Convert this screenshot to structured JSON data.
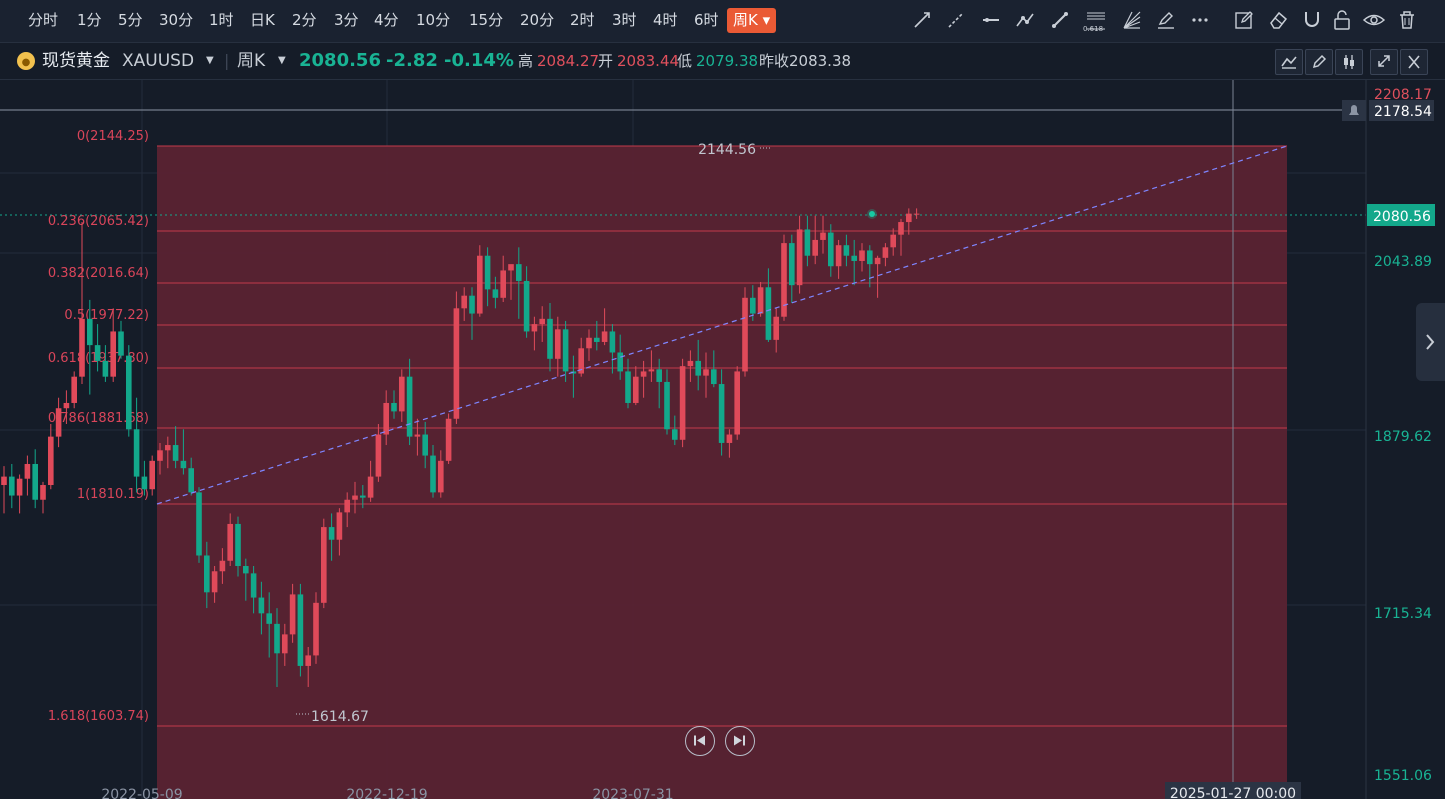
{
  "timeframes": [
    "分时",
    "1分",
    "5分",
    "30分",
    "1时",
    "日K",
    "2分",
    "3分",
    "4分",
    "10分",
    "15分",
    "20分",
    "2时",
    "3时",
    "4时",
    "6时",
    "周K"
  ],
  "active_timeframe": "周K",
  "drawing_tools": [
    "trend-line-icon",
    "ray-line-icon",
    "horizontal-line-icon",
    "polyline-icon",
    "segment-icon",
    "fibonacci-icon",
    "fib-fan-icon",
    "pen-icon",
    "more-icon",
    "edit-note-icon",
    "eraser-icon",
    "magnet-icon",
    "unlock-icon",
    "eye-icon",
    "trash-icon"
  ],
  "fib_tool_label": "0.618",
  "symbol": {
    "name": "现货黄金",
    "code": "XAUUSD",
    "period": "周K",
    "price": "2080.56",
    "change": "-2.82",
    "change_pct": "-0.14%",
    "high_label": "高",
    "high": "2084.27",
    "open_label": "开",
    "open": "2083.44",
    "low_label": "低",
    "low": "2079.38",
    "prev_close_label": "昨收",
    "prev_close": "2083.38"
  },
  "colors": {
    "up": "#e04a5a",
    "down": "#13a88b",
    "background": "#151c28",
    "fib_fill": "#5a2332",
    "fib_line": "#c23a4a",
    "trend_line": "#7f86ff",
    "active_tab": "#ea5a35"
  },
  "chart_data": {
    "type": "candlestick",
    "price_axis_labels": [
      "2208.17",
      "2178.54",
      "2043.89",
      "1879.62",
      "1715.34",
      "1551.06"
    ],
    "last_price_tag": "2080.56",
    "alert_price_tag": "2178.54",
    "date_labels": [
      "2022-05-09",
      "2022-12-19",
      "2023-07-31"
    ],
    "crosshair_date": "2025-01-27 00:00",
    "max_label": "2144.56",
    "min_label": "1614.67",
    "fib_levels": [
      {
        "ratio": "0",
        "price": 2144.25,
        "label": "0(2144.25)"
      },
      {
        "ratio": "0.236",
        "price": 2065.42,
        "label": "0.236(2065.42)"
      },
      {
        "ratio": "0.382",
        "price": 2016.64,
        "label": "0.382(2016.64)"
      },
      {
        "ratio": "0.5",
        "price": 1977.22,
        "label": "0.5(1977.22)"
      },
      {
        "ratio": "0.618",
        "price": 1937.8,
        "label": "0.618(1937.80)"
      },
      {
        "ratio": "0.786",
        "price": 1881.68,
        "label": "0.786(1881.68)"
      },
      {
        "ratio": "1",
        "price": 1810.19,
        "label": "1(1810.19)"
      },
      {
        "ratio": "1.618",
        "price": 1603.74,
        "label": "1.618(1603.74)"
      }
    ],
    "trend_line": {
      "from": {
        "date_index": 19,
        "price": 1810.19
      },
      "to": {
        "date_index": 157,
        "price": 2144.25
      }
    },
    "candles": [
      [
        1822,
        1840,
        1795,
        1830
      ],
      [
        1830,
        1842,
        1800,
        1812
      ],
      [
        1812,
        1832,
        1795,
        1828
      ],
      [
        1828,
        1850,
        1812,
        1842
      ],
      [
        1842,
        1856,
        1800,
        1808
      ],
      [
        1808,
        1825,
        1795,
        1822
      ],
      [
        1822,
        1880,
        1818,
        1868
      ],
      [
        1868,
        1905,
        1858,
        1895
      ],
      [
        1895,
        1912,
        1880,
        1900
      ],
      [
        1900,
        1930,
        1895,
        1925
      ],
      [
        1925,
        2072,
        1918,
        1980
      ],
      [
        1980,
        1998,
        1908,
        1955
      ],
      [
        1955,
        1975,
        1930,
        1940
      ],
      [
        1940,
        1955,
        1920,
        1925
      ],
      [
        1925,
        1990,
        1920,
        1968
      ],
      [
        1968,
        1978,
        1942,
        1945
      ],
      [
        1945,
        1955,
        1868,
        1875
      ],
      [
        1875,
        1905,
        1815,
        1830
      ],
      [
        1830,
        1845,
        1812,
        1818
      ],
      [
        1818,
        1850,
        1812,
        1845
      ],
      [
        1845,
        1862,
        1832,
        1855
      ],
      [
        1855,
        1868,
        1838,
        1860
      ],
      [
        1860,
        1878,
        1838,
        1845
      ],
      [
        1845,
        1875,
        1832,
        1838
      ],
      [
        1838,
        1848,
        1812,
        1815
      ],
      [
        1815,
        1820,
        1748,
        1755
      ],
      [
        1755,
        1768,
        1705,
        1720
      ],
      [
        1720,
        1745,
        1710,
        1740
      ],
      [
        1740,
        1762,
        1728,
        1750
      ],
      [
        1750,
        1795,
        1745,
        1785
      ],
      [
        1785,
        1792,
        1735,
        1745
      ],
      [
        1745,
        1752,
        1712,
        1738
      ],
      [
        1738,
        1745,
        1700,
        1715
      ],
      [
        1715,
        1730,
        1680,
        1700
      ],
      [
        1700,
        1720,
        1658,
        1690
      ],
      [
        1690,
        1705,
        1630,
        1662
      ],
      [
        1662,
        1690,
        1650,
        1680
      ],
      [
        1680,
        1728,
        1672,
        1718
      ],
      [
        1718,
        1728,
        1640,
        1650
      ],
      [
        1650,
        1668,
        1630,
        1660
      ],
      [
        1660,
        1720,
        1652,
        1710
      ],
      [
        1710,
        1790,
        1705,
        1782
      ],
      [
        1782,
        1795,
        1750,
        1770
      ],
      [
        1770,
        1800,
        1755,
        1796
      ],
      [
        1796,
        1815,
        1782,
        1808
      ],
      [
        1808,
        1825,
        1795,
        1812
      ],
      [
        1812,
        1822,
        1800,
        1810
      ],
      [
        1810,
        1845,
        1806,
        1830
      ],
      [
        1830,
        1880,
        1825,
        1870
      ],
      [
        1870,
        1912,
        1860,
        1900
      ],
      [
        1900,
        1912,
        1885,
        1892
      ],
      [
        1892,
        1932,
        1882,
        1925
      ],
      [
        1925,
        1942,
        1860,
        1868
      ],
      [
        1868,
        1885,
        1850,
        1870
      ],
      [
        1870,
        1882,
        1838,
        1850
      ],
      [
        1850,
        1860,
        1810,
        1815
      ],
      [
        1815,
        1855,
        1810,
        1845
      ],
      [
        1845,
        1890,
        1842,
        1885
      ],
      [
        1885,
        2006,
        1880,
        1990
      ],
      [
        1990,
        2010,
        1978,
        2002
      ],
      [
        2002,
        2010,
        1960,
        1985
      ],
      [
        1985,
        2050,
        1982,
        2040
      ],
      [
        2040,
        2048,
        1992,
        2008
      ],
      [
        2008,
        2020,
        1990,
        2000
      ],
      [
        2000,
        2040,
        1996,
        2026
      ],
      [
        2026,
        2030,
        1998,
        2032
      ],
      [
        2032,
        2048,
        1980,
        2016
      ],
      [
        2016,
        2030,
        1962,
        1968
      ],
      [
        1968,
        1982,
        1950,
        1975
      ],
      [
        1975,
        1992,
        1958,
        1980
      ],
      [
        1980,
        1995,
        1930,
        1942
      ],
      [
        1942,
        1982,
        1925,
        1970
      ],
      [
        1970,
        1978,
        1920,
        1930
      ],
      [
        1930,
        1945,
        1905,
        1928
      ],
      [
        1928,
        1962,
        1925,
        1952
      ],
      [
        1952,
        1970,
        1940,
        1962
      ],
      [
        1962,
        1978,
        1950,
        1958
      ],
      [
        1958,
        1990,
        1955,
        1968
      ],
      [
        1968,
        1975,
        1928,
        1948
      ],
      [
        1948,
        1965,
        1922,
        1930
      ],
      [
        1930,
        1942,
        1895,
        1900
      ],
      [
        1900,
        1935,
        1898,
        1925
      ],
      [
        1925,
        1940,
        1905,
        1930
      ],
      [
        1930,
        1950,
        1920,
        1932
      ],
      [
        1932,
        1942,
        1895,
        1920
      ],
      [
        1920,
        1932,
        1870,
        1875
      ],
      [
        1875,
        1888,
        1860,
        1865
      ],
      [
        1865,
        1942,
        1858,
        1935
      ],
      [
        1935,
        1950,
        1920,
        1940
      ],
      [
        1940,
        1960,
        1912,
        1926
      ],
      [
        1926,
        1948,
        1905,
        1932
      ],
      [
        1932,
        1950,
        1915,
        1918
      ],
      [
        1918,
        1932,
        1850,
        1862
      ],
      [
        1862,
        1875,
        1848,
        1870
      ],
      [
        1870,
        1935,
        1865,
        1930
      ],
      [
        1930,
        2010,
        1925,
        2000
      ],
      [
        2000,
        2012,
        1978,
        1985
      ],
      [
        1985,
        2015,
        1982,
        2010
      ],
      [
        2010,
        2028,
        1958,
        1960
      ],
      [
        1960,
        1990,
        1948,
        1982
      ],
      [
        1982,
        2060,
        1978,
        2052
      ],
      [
        2052,
        2060,
        1995,
        2012
      ],
      [
        2012,
        2078,
        2004,
        2065
      ],
      [
        2065,
        2078,
        2030,
        2040
      ],
      [
        2040,
        2078,
        2032,
        2055
      ],
      [
        2055,
        2078,
        2042,
        2062
      ],
      [
        2062,
        2070,
        2020,
        2030
      ],
      [
        2030,
        2055,
        2018,
        2050
      ],
      [
        2050,
        2060,
        2030,
        2040
      ],
      [
        2040,
        2055,
        2012,
        2035
      ],
      [
        2035,
        2052,
        2025,
        2045
      ],
      [
        2045,
        2050,
        2010,
        2032
      ],
      [
        2032,
        2040,
        2000,
        2038
      ],
      [
        2038,
        2052,
        2030,
        2048
      ],
      [
        2048,
        2066,
        2040,
        2060
      ],
      [
        2060,
        2075,
        2040,
        2072
      ],
      [
        2072,
        2085,
        2060,
        2080
      ],
      [
        2080,
        2085,
        2075,
        2080
      ]
    ]
  }
}
